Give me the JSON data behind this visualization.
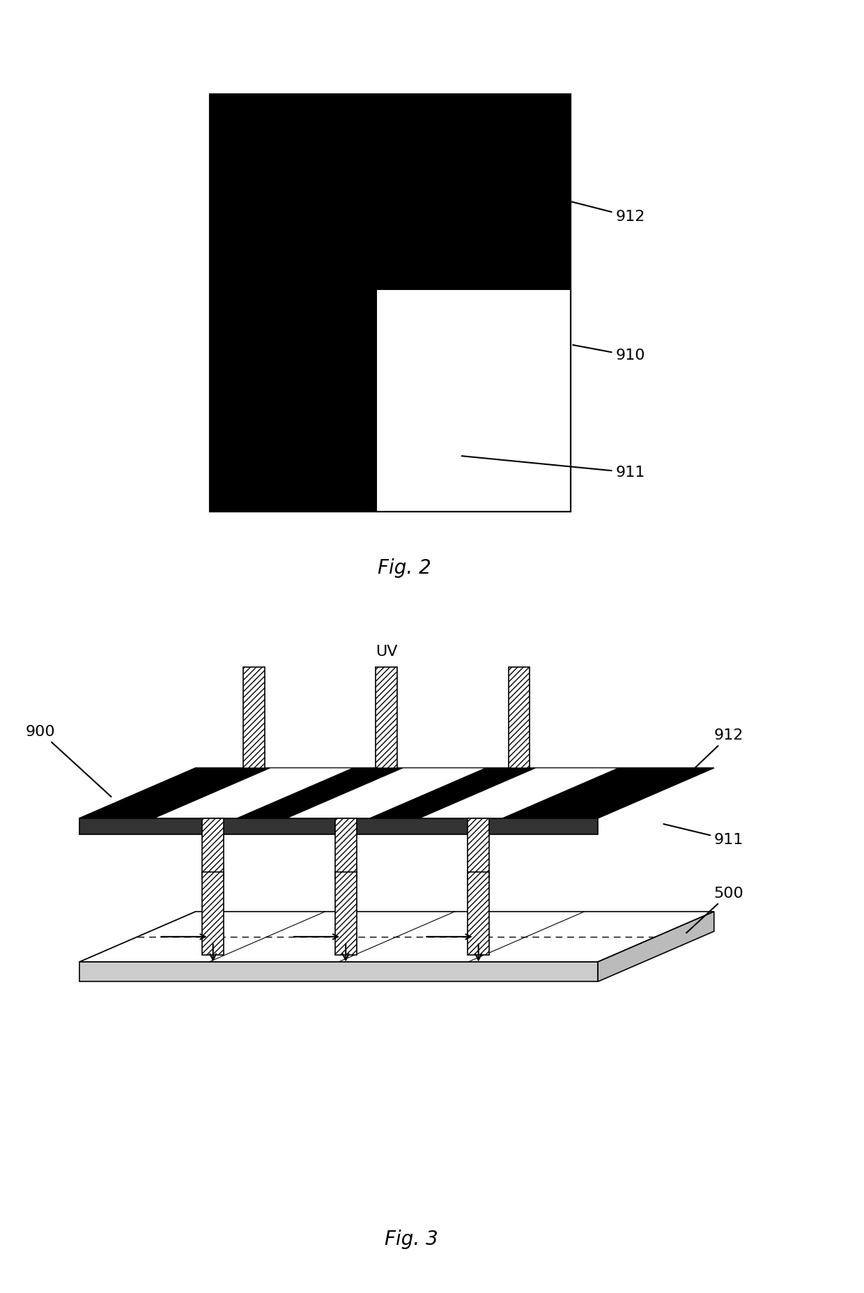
{
  "bg_color": "#ffffff",
  "fig_width": 12.4,
  "fig_height": 18.55,
  "fig2_label": "Fig. 2",
  "fig3_label": "Fig. 3",
  "label_912_fig2": "912",
  "label_910_fig2": "910",
  "label_911_fig2": "911",
  "label_900_fig3": "900",
  "label_UV_fig3": "UV",
  "label_912_fig3": "912",
  "label_911_fig3": "911",
  "label_500_fig3": "500",
  "black_color": "#000000",
  "white_color": "#ffffff",
  "hatch_pattern": "////",
  "font_size_label": 16,
  "font_size_fig": 20
}
